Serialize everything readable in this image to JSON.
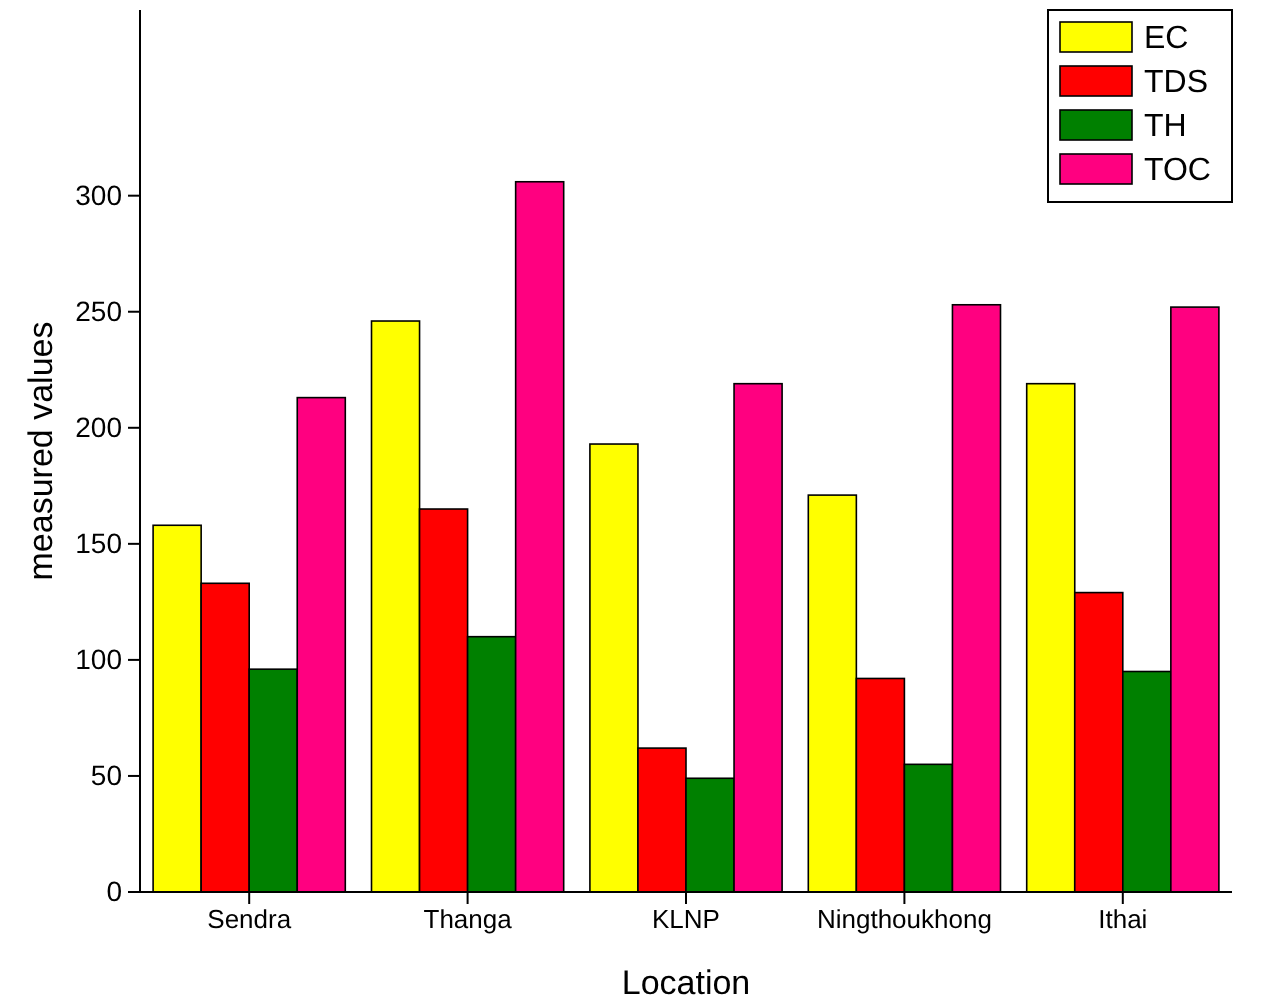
{
  "chart_data": {
    "type": "bar",
    "xlabel": "Location",
    "ylabel": "measured values",
    "categories": [
      "Sendra",
      "Thanga",
      "KLNP",
      "Ningthoukhong",
      "Ithai"
    ],
    "series": [
      {
        "name": "EC",
        "color": "#ffff00",
        "values": [
          158,
          246,
          193,
          171,
          219
        ]
      },
      {
        "name": "TDS",
        "color": "#ff0000",
        "values": [
          133,
          165,
          62,
          92,
          129
        ]
      },
      {
        "name": "TH",
        "color": "#008000",
        "values": [
          96,
          110,
          49,
          55,
          95
        ]
      },
      {
        "name": "TOC",
        "color": "#ff0080",
        "values": [
          213,
          306,
          219,
          253,
          252
        ]
      }
    ],
    "ylim": [
      0,
      380
    ],
    "yticks": [
      0,
      50,
      100,
      150,
      200,
      250,
      300
    ],
    "grid": false,
    "legend": "top right"
  }
}
